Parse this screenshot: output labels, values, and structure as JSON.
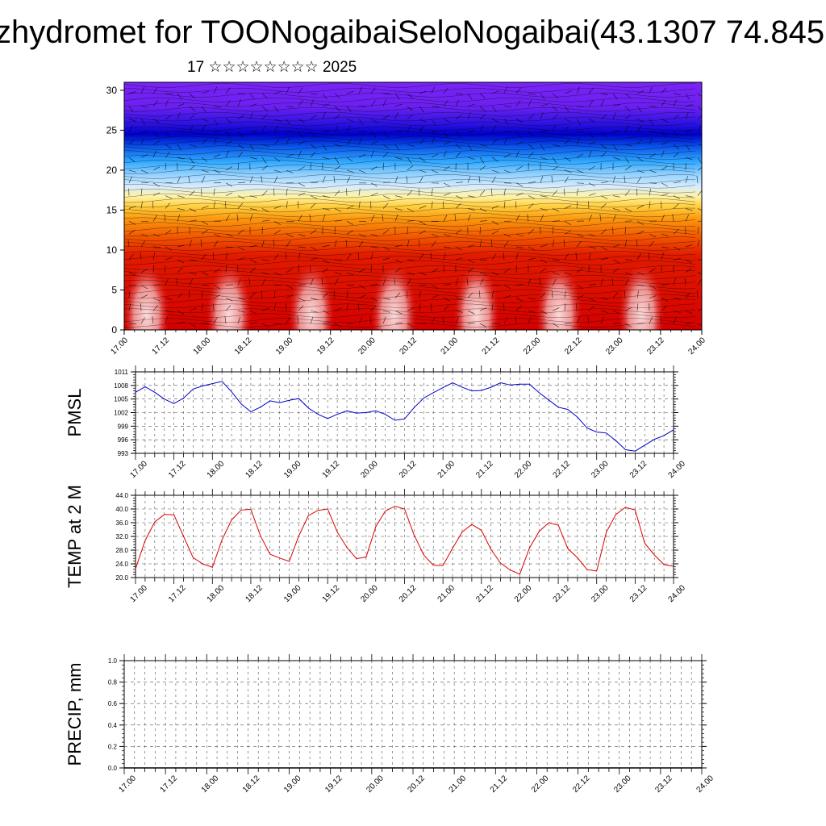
{
  "title": "zhydromet for TOONogaibaiSeloNogaibai(43.1307 74.845",
  "subtitle": "17 ☆☆☆☆☆☆☆☆ 2025",
  "colors": {
    "pmsl_line": "#0000cc",
    "temp_line": "#dd0000",
    "grid": "#555555"
  },
  "chart_data": [
    {
      "type": "heatmap",
      "title": "",
      "xlabel": "",
      "ylabel": "",
      "x_ticks": [
        "17.00",
        "17.12",
        "18.00",
        "18.12",
        "19.00",
        "19.12",
        "20.00",
        "20.12",
        "21.00",
        "21.12",
        "22.00",
        "22.12",
        "23.00",
        "23.12",
        "24.00"
      ],
      "ylim": [
        0,
        31
      ],
      "y_ticks": [
        0,
        5,
        10,
        15,
        20,
        25,
        30
      ],
      "overlay": "wind vectors"
    },
    {
      "type": "line",
      "ylabel": "PMSL",
      "ylim": [
        993,
        1011
      ],
      "y_ticks": [
        993,
        996,
        999,
        1002,
        1005,
        1008,
        1011
      ],
      "x_ticks": [
        "17.00",
        "17.12",
        "18.00",
        "18.12",
        "19.00",
        "19.12",
        "20.00",
        "20.12",
        "21.00",
        "21.12",
        "22.00",
        "22.12",
        "23.00",
        "23.12",
        "24.00"
      ],
      "series": [
        {
          "values": [
            1006.5,
            1007.7,
            1006.5,
            1005.0,
            1004.0,
            1005.2,
            1007.2,
            1007.9,
            1008.4,
            1008.9,
            1006.6,
            1003.9,
            1002.2,
            1003.2,
            1004.6,
            1004.2,
            1004.7,
            1005.1,
            1003.0,
            1001.6,
            1000.7,
            1001.6,
            1002.4,
            1001.9,
            1002.0,
            1002.4,
            1001.6,
            1000.3,
            1000.6,
            1003.1,
            1005.2,
            1006.4,
            1007.5,
            1008.6,
            1007.6,
            1006.8,
            1006.9,
            1007.6,
            1008.6,
            1008.1,
            1008.3,
            1008.3,
            1006.4,
            1004.8,
            1003.2,
            1002.7,
            1001.0,
            998.6,
            997.7,
            997.5,
            995.8,
            993.8,
            993.5,
            994.8,
            996.1,
            996.9,
            998.2
          ]
        }
      ]
    },
    {
      "type": "line",
      "ylabel": "TEMP at 2 M",
      "ylim": [
        20,
        44
      ],
      "y_ticks": [
        "20.0",
        "24.0",
        "28.0",
        "32.0",
        "36.0",
        "40.0",
        "44.0"
      ],
      "x_ticks": [
        "17.00",
        "17.12",
        "18.00",
        "18.12",
        "19.00",
        "19.12",
        "20.00",
        "20.12",
        "21.00",
        "21.12",
        "22.00",
        "22.12",
        "23.00",
        "23.12",
        "24.00"
      ],
      "series": [
        {
          "values": [
            22.5,
            30.8,
            36.2,
            38.4,
            38.3,
            32.0,
            25.8,
            24.0,
            23.0,
            31.0,
            36.8,
            39.7,
            39.9,
            32.2,
            26.8,
            25.7,
            24.7,
            32.2,
            38.1,
            39.6,
            40.0,
            33.3,
            28.8,
            25.5,
            26.0,
            34.8,
            39.4,
            40.8,
            40.0,
            32.4,
            26.6,
            23.6,
            23.5,
            28.6,
            33.3,
            35.5,
            33.8,
            28.2,
            24.2,
            22.2,
            21.0,
            28.6,
            33.4,
            36.0,
            35.3,
            28.4,
            25.8,
            22.3,
            21.9,
            33.2,
            38.4,
            40.5,
            39.7,
            30.0,
            26.6,
            23.8,
            23.3
          ]
        }
      ]
    },
    {
      "type": "line",
      "ylabel": "PRECIP, mm",
      "ylim": [
        0,
        1.0
      ],
      "y_ticks": [
        "0.0",
        "0.2",
        "0.4",
        "0.6",
        "0.8",
        "1.0"
      ],
      "x_ticks": [
        "17.00",
        "17.12",
        "18.00",
        "18.12",
        "19.00",
        "19.12",
        "20.00",
        "20.12",
        "21.00",
        "21.12",
        "22.00",
        "22.12",
        "23.00",
        "23.12",
        "24.00"
      ],
      "series": [
        {
          "values": []
        }
      ]
    }
  ]
}
